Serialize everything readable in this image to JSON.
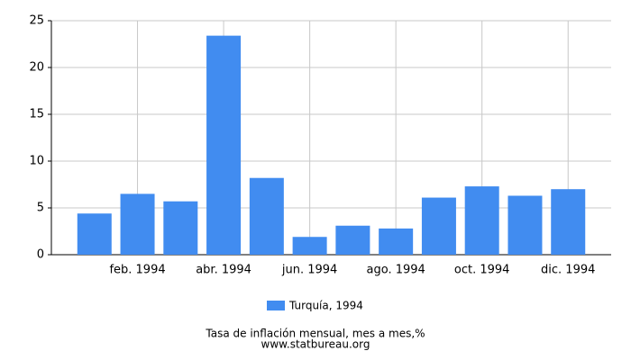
{
  "chart_data": {
    "type": "bar",
    "categories": [
      null,
      "feb. 1994",
      null,
      "abr. 1994",
      null,
      "jun. 1994",
      null,
      "ago. 1994",
      null,
      "oct. 1994",
      null,
      "dic. 1994"
    ],
    "series": [
      {
        "name": "Turquía, 1994",
        "color": "#418cf0",
        "values": [
          4.4,
          6.5,
          5.7,
          23.4,
          8.2,
          1.9,
          3.1,
          2.8,
          6.1,
          7.3,
          6.3,
          7.0
        ]
      }
    ],
    "ylim": [
      0,
      25
    ],
    "yticks": [
      0,
      5,
      10,
      15,
      20,
      25
    ],
    "grid": true,
    "footer": [
      "Tasa de inflación mensual, mes a mes,%",
      "www.statbureau.org"
    ]
  }
}
